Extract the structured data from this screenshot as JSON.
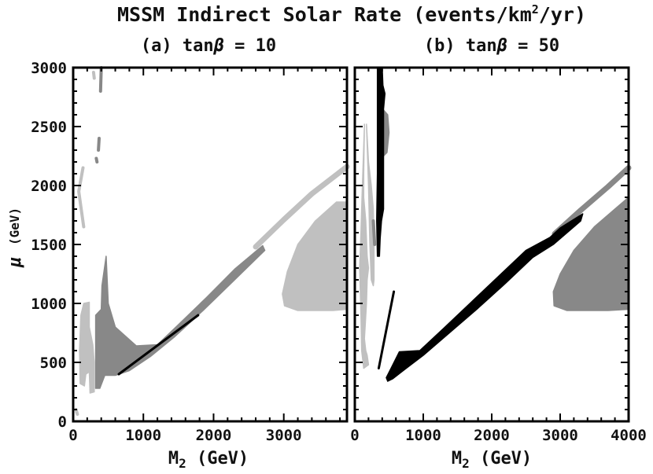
{
  "title": {
    "main": "MSSM Indirect Solar Rate (events/km",
    "sup": "2",
    "tail": "/yr)"
  },
  "colors": {
    "light": "#c0c0c0",
    "mid": "#888888",
    "dark": "#000000"
  },
  "chart_data": [
    {
      "type": "area",
      "panel_label": "(a) tan",
      "beta_symbol": "β",
      "panel_value": " = 10",
      "xlabel": {
        "main": "M",
        "sub": "2",
        "tail": " (GeV)"
      },
      "ylabel": {
        "mu": "μ",
        "unit": "(GeV)"
      },
      "xlim": [
        0,
        3900
      ],
      "ylim": [
        0,
        3000
      ],
      "xticks": [
        0,
        1000,
        2000,
        3000
      ],
      "yticks": [
        0,
        500,
        1000,
        1500,
        2000,
        2500,
        3000
      ],
      "regions": [
        {
          "name": "mid-band",
          "shade": "mid",
          "kind": "polygon",
          "points": [
            [
              320,
              280
            ],
            [
              320,
              900
            ],
            [
              400,
              950
            ],
            [
              410,
              1150
            ],
            [
              470,
              1400
            ],
            [
              500,
              1000
            ],
            [
              600,
              800
            ],
            [
              900,
              640
            ],
            [
              1200,
              650
            ],
            [
              1500,
              820
            ],
            [
              1900,
              1050
            ],
            [
              2300,
              1290
            ],
            [
              2700,
              1490
            ],
            [
              2730,
              1450
            ],
            [
              2300,
              1200
            ],
            [
              1850,
              940
            ],
            [
              1450,
              720
            ],
            [
              1100,
              550
            ],
            [
              800,
              430
            ],
            [
              600,
              390
            ],
            [
              450,
              390
            ],
            [
              380,
              280
            ]
          ]
        },
        {
          "name": "light-upper-band",
          "shade": "light",
          "kind": "line",
          "width": 7,
          "points": [
            [
              2600,
              1480
            ],
            [
              3000,
              1710
            ],
            [
              3400,
              1930
            ],
            [
              3900,
              2160
            ]
          ]
        },
        {
          "name": "light-region-right",
          "shade": "light",
          "kind": "polygon",
          "points": [
            [
              2980,
              1080
            ],
            [
              3050,
              1270
            ],
            [
              3200,
              1500
            ],
            [
              3450,
              1700
            ],
            [
              3750,
              1860
            ],
            [
              3900,
              1860
            ],
            [
              3900,
              950
            ],
            [
              3700,
              940
            ],
            [
              3200,
              940
            ],
            [
              3010,
              980
            ]
          ]
        },
        {
          "name": "light-low-left",
          "shade": "light",
          "kind": "polygon",
          "points": [
            [
              100,
              320
            ],
            [
              90,
              600
            ],
            [
              110,
              900
            ],
            [
              150,
              1000
            ],
            [
              230,
              1010
            ],
            [
              230,
              800
            ],
            [
              280,
              650
            ],
            [
              300,
              500
            ],
            [
              300,
              250
            ],
            [
              240,
              240
            ],
            [
              230,
              420
            ],
            [
              180,
              400
            ],
            [
              160,
              300
            ]
          ]
        },
        {
          "name": "light-vertical",
          "shade": "light",
          "kind": "line",
          "width": 4,
          "points": [
            [
              150,
              1650
            ],
            [
              110,
              1820
            ],
            [
              80,
              1950
            ],
            [
              140,
              2150
            ]
          ]
        },
        {
          "name": "light-stub-bottom",
          "shade": "light",
          "kind": "line",
          "width": 4,
          "points": [
            [
              40,
              100
            ],
            [
              60,
              60
            ]
          ]
        },
        {
          "name": "light-stub-top",
          "shade": "light",
          "kind": "line",
          "width": 4,
          "points": [
            [
              290,
              2960
            ],
            [
              300,
              2910
            ]
          ]
        },
        {
          "name": "mid-stub-top",
          "shade": "mid",
          "kind": "line",
          "width": 4,
          "points": [
            [
              390,
              2800
            ],
            [
              400,
              3000
            ]
          ]
        },
        {
          "name": "mid-dash-1",
          "shade": "mid",
          "kind": "line",
          "width": 4,
          "points": [
            [
              360,
              2300
            ],
            [
              370,
              2400
            ]
          ]
        },
        {
          "name": "mid-dash-2",
          "shade": "mid",
          "kind": "line",
          "width": 4,
          "points": [
            [
              330,
              2230
            ],
            [
              340,
              2200
            ]
          ]
        },
        {
          "name": "dark-line",
          "shade": "dark",
          "kind": "line",
          "width": 3,
          "points": [
            [
              650,
              400
            ],
            [
              1780,
              900
            ]
          ]
        }
      ]
    },
    {
      "type": "area",
      "panel_label": "(b) tan",
      "beta_symbol": "β",
      "panel_value": " = 50",
      "xlabel": {
        "main": "M",
        "sub": "2",
        "tail": " (GeV)"
      },
      "ylabel": {
        "mu": "",
        "unit": ""
      },
      "xlim": [
        0,
        4000
      ],
      "ylim": [
        0,
        3000
      ],
      "xticks": [
        0,
        1000,
        2000,
        3000,
        4000
      ],
      "yticks": [],
      "regions": [
        {
          "name": "mid-band",
          "shade": "mid",
          "kind": "line",
          "width": 7,
          "points": [
            [
              2920,
              1590
            ],
            [
              3300,
              1790
            ],
            [
              3700,
              1990
            ],
            [
              4000,
              2150
            ]
          ]
        },
        {
          "name": "mid-region-right",
          "shade": "mid",
          "kind": "polygon",
          "points": [
            [
              2900,
              1100
            ],
            [
              3000,
              1250
            ],
            [
              3200,
              1450
            ],
            [
              3500,
              1650
            ],
            [
              3800,
              1800
            ],
            [
              4000,
              1900
            ],
            [
              4000,
              950
            ],
            [
              3700,
              940
            ],
            [
              3100,
              940
            ],
            [
              2910,
              980
            ]
          ]
        },
        {
          "name": "light-strip-left",
          "shade": "light",
          "kind": "polygon",
          "points": [
            [
              140,
              2520
            ],
            [
              130,
              2100
            ],
            [
              130,
              1900
            ],
            [
              160,
              1700
            ],
            [
              180,
              1400
            ],
            [
              200,
              1300
            ],
            [
              180,
              1200
            ],
            [
              170,
              1000
            ],
            [
              150,
              800
            ],
            [
              140,
              700
            ],
            [
              160,
              600
            ],
            [
              180,
              560
            ],
            [
              200,
              480
            ],
            [
              130,
              450
            ],
            [
              100,
              600
            ],
            [
              90,
              900
            ],
            [
              70,
              1300
            ],
            [
              90,
              1600
            ],
            [
              110,
              2000
            ],
            [
              140,
              2500
            ]
          ]
        },
        {
          "name": "light-strip-right",
          "shade": "light",
          "kind": "polygon",
          "points": [
            [
              170,
              2520
            ],
            [
              200,
              2200
            ],
            [
              240,
              2000
            ],
            [
              270,
              1800
            ],
            [
              280,
              1500
            ],
            [
              280,
              1200
            ],
            [
              270,
              1150
            ],
            [
              240,
              1200
            ],
            [
              220,
              1500
            ],
            [
              200,
              2000
            ]
          ]
        },
        {
          "name": "mid-top-strip",
          "shade": "mid",
          "kind": "polygon",
          "points": [
            [
              420,
              2640
            ],
            [
              480,
              2600
            ],
            [
              500,
              2450
            ],
            [
              470,
              2280
            ],
            [
              420,
              2250
            ]
          ]
        },
        {
          "name": "mid-dashes",
          "shade": "mid",
          "kind": "line",
          "width": 4,
          "points": [
            [
              270,
              1700
            ],
            [
              290,
              1500
            ]
          ]
        },
        {
          "name": "dark-vertical",
          "shade": "dark",
          "kind": "polygon",
          "points": [
            [
              330,
              3000
            ],
            [
              400,
              3000
            ],
            [
              410,
              2850
            ],
            [
              440,
              2780
            ],
            [
              420,
              2650
            ],
            [
              420,
              2200
            ],
            [
              420,
              1800
            ],
            [
              390,
              1700
            ],
            [
              370,
              1550
            ],
            [
              360,
              1400
            ],
            [
              330,
              1400
            ],
            [
              320,
              1700
            ],
            [
              330,
              2100
            ],
            [
              330,
              2600
            ]
          ]
        },
        {
          "name": "dark-diagonal-line",
          "shade": "dark",
          "kind": "line",
          "width": 3,
          "points": [
            [
              350,
              450
            ],
            [
              570,
              1100
            ]
          ]
        },
        {
          "name": "dark-band",
          "shade": "dark",
          "kind": "polygon",
          "points": [
            [
              460,
              370
            ],
            [
              530,
              450
            ],
            [
              650,
              590
            ],
            [
              950,
              600
            ],
            [
              1300,
              790
            ],
            [
              1700,
              1010
            ],
            [
              2100,
              1230
            ],
            [
              2500,
              1450
            ],
            [
              2850,
              1560
            ],
            [
              3000,
              1640
            ],
            [
              3330,
              1760
            ],
            [
              3300,
              1700
            ],
            [
              2900,
              1500
            ],
            [
              2600,
              1390
            ],
            [
              2200,
              1170
            ],
            [
              1800,
              960
            ],
            [
              1400,
              760
            ],
            [
              1000,
              560
            ],
            [
              750,
              450
            ],
            [
              550,
              360
            ],
            [
              480,
              340
            ]
          ]
        }
      ]
    }
  ]
}
